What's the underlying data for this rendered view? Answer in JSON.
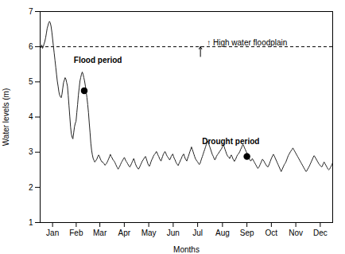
{
  "chart_data": {
    "type": "line",
    "xlabel": "Months",
    "ylabel": "Water levels (m)",
    "xlim": [
      0,
      365
    ],
    "xticks": [
      {
        "value": 15.5,
        "label": "Jan"
      },
      {
        "value": 45,
        "label": "Feb"
      },
      {
        "value": 74.5,
        "label": "Mar"
      },
      {
        "value": 105,
        "label": "Apr"
      },
      {
        "value": 135.5,
        "label": "May"
      },
      {
        "value": 166,
        "label": "Jun"
      },
      {
        "value": 196.5,
        "label": "Jul"
      },
      {
        "value": 227.5,
        "label": "Aug"
      },
      {
        "value": 258,
        "label": "Sep"
      },
      {
        "value": 288.5,
        "label": "Oct"
      },
      {
        "value": 319,
        "label": "Nov"
      },
      {
        "value": 349.5,
        "label": "Dec"
      }
    ],
    "ylim": [
      1,
      7
    ],
    "yticks": [
      1,
      2,
      3,
      4,
      5,
      6,
      7
    ],
    "grid": false,
    "background_color": "#ffffff",
    "series": [
      {
        "type": "line",
        "color": "#222222",
        "x": [
          0,
          0.9733,
          1.9467,
          2.92,
          3.8933,
          4.8667,
          5.84,
          6.8133,
          7.7867,
          8.76,
          9.7333,
          10.7067,
          11.68,
          12.6533,
          13.6267,
          14.6,
          15.5733,
          16.5467,
          17.52,
          18.4933,
          19.4667,
          20.44,
          21.4133,
          22.3867,
          23.36,
          24.3333,
          25.3067,
          26.28,
          27.2533,
          28.2267,
          29.2,
          30.1733,
          31.1467,
          32.12,
          33.0933,
          34.0667,
          35.04,
          36.0133,
          36.9867,
          37.96,
          38.9333,
          39.9067,
          40.88,
          41.8533,
          42.8267,
          43.8,
          44.7733,
          45.7467,
          46.72,
          47.6933,
          48.6667,
          49.64,
          50.6133,
          51.5867,
          52.56,
          53.5333,
          54.5067,
          55.48,
          56.4533,
          57.4267,
          58.4,
          59.3733,
          60.3467,
          61.32,
          62.2933,
          63.2667,
          64.24,
          65.2133,
          66.1867,
          67.16,
          68.1333,
          69.1067,
          70.08,
          71.0533,
          72.0267,
          73,
          73.9733,
          74.9467,
          75.92,
          76.8933,
          77.8667,
          78.84,
          79.8133,
          80.7867,
          81.76,
          82.7333,
          83.7067,
          84.68,
          85.6533,
          86.6267,
          87.6,
          88.5733,
          89.5467,
          90.52,
          91.4933,
          92.4667,
          93.44,
          94.4133,
          95.3867,
          96.36,
          97.3333,
          98.3067,
          99.28,
          100.2533,
          101.2267,
          102.2,
          103.1733,
          104.1467,
          105.12,
          106.0933,
          107.0667,
          108.04,
          109.0133,
          109.9867,
          110.96,
          111.9333,
          112.9067,
          113.88,
          114.8533,
          115.8267,
          116.8,
          117.7733,
          118.7467,
          119.72,
          120.6933,
          121.6667,
          122.64,
          123.6133,
          124.5867,
          125.56,
          126.5333,
          127.5067,
          128.48,
          129.4533,
          130.4267,
          131.4,
          132.3733,
          133.3467,
          134.32,
          135.2933,
          136.2667,
          137.24,
          138.2133,
          139.1867,
          140.16,
          141.1333,
          142.1067,
          143.08,
          144.0533,
          145.0267,
          146,
          146.9733,
          147.9467,
          148.92,
          149.8933,
          150.8667,
          151.84,
          152.8133,
          153.7867,
          154.76,
          155.7333,
          156.7067,
          157.68,
          158.6533,
          159.6267,
          160.6,
          161.5733,
          162.5467,
          163.52,
          164.4933,
          165.4667,
          166.44,
          167.4133,
          168.3867,
          169.36,
          170.3333,
          171.3067,
          172.28,
          173.2533,
          174.2267,
          175.2,
          176.1733,
          177.1467,
          178.12,
          179.0933,
          180.0667,
          181.04,
          182.0133,
          182.9867,
          183.96,
          184.9333,
          185.9067,
          186.88,
          187.8533,
          188.8267,
          189.8,
          190.7733,
          191.7467,
          192.72,
          193.6933,
          194.6667,
          195.64,
          196.6133,
          197.5867,
          198.56,
          199.5333,
          200.5067,
          201.48,
          202.4533,
          203.4267,
          204.4,
          205.3733,
          206.3467,
          207.32,
          208.2933,
          209.2667,
          210.24,
          211.2133,
          212.1867,
          213.16,
          214.1333,
          215.1067,
          216.08,
          217.0533,
          218.0267,
          219,
          219.9733,
          220.9467,
          221.92,
          222.8933,
          223.8667,
          224.84,
          225.8133,
          226.7867,
          227.76,
          228.7333,
          229.7067,
          230.68,
          231.6533,
          232.6267,
          233.6,
          234.5733,
          235.5467,
          236.52,
          237.4933,
          238.4667,
          239.44,
          240.4133,
          241.3867,
          242.36,
          243.3333,
          244.3067,
          245.28,
          246.2533,
          247.2267,
          248.2,
          249.1733,
          250.1467,
          251.12,
          252.0933,
          253.0667,
          254.04,
          255.0133,
          255.9867,
          256.96,
          257.9333,
          258.9067,
          259.88,
          260.8533,
          261.8267,
          262.8,
          263.7733,
          264.7467,
          265.72,
          266.6933,
          267.6667,
          268.64,
          269.6133,
          270.5867,
          271.56,
          272.5333,
          273.5067,
          274.48,
          275.4533,
          276.4267,
          277.4,
          278.3733,
          279.3467,
          280.32,
          281.2933,
          282.2667,
          283.24,
          284.2133,
          285.1867,
          286.16,
          287.1333,
          288.1067,
          289.08,
          290.0533,
          291.0267,
          292,
          292.9733,
          293.9467,
          294.92,
          295.8933,
          296.8667,
          297.84,
          298.8133,
          299.7867,
          300.76,
          301.7333,
          302.7067,
          303.68,
          304.6533,
          305.6267,
          306.6,
          307.5733,
          308.5467,
          309.52,
          310.4933,
          311.4667,
          312.44,
          313.4133,
          314.3867,
          315.36,
          316.3333,
          317.3067,
          318.28,
          319.2533,
          320.2267,
          321.2,
          322.1733,
          323.1467,
          324.12,
          325.0933,
          326.0667,
          327.04,
          328.0133,
          328.9867,
          329.96,
          330.9333,
          331.9067,
          332.88,
          333.8533,
          334.8267,
          335.8,
          336.7733,
          337.7467,
          338.72,
          339.6933,
          340.6667,
          341.64,
          342.6133,
          343.5867,
          344.56,
          345.5333,
          346.5067,
          347.48,
          348.4533,
          349.4267,
          350.4,
          351.3733,
          352.3467,
          353.32,
          354.2933,
          355.2667,
          356.24,
          357.2133,
          358.1867,
          359.16,
          360.1333,
          361.1067,
          362.08,
          363.0533,
          364.0267,
          365
        ],
        "values": [
          6.02,
          5.98,
          6.05,
          5.95,
          6.0,
          6.08,
          6.15,
          6.25,
          6.38,
          6.52,
          6.6,
          6.68,
          6.72,
          6.68,
          6.58,
          6.42,
          6.22,
          6.02,
          5.82,
          5.62,
          5.42,
          5.22,
          5.02,
          4.88,
          4.72,
          4.62,
          4.58,
          4.55,
          4.65,
          4.82,
          4.98,
          5.05,
          5.12,
          5.08,
          4.98,
          4.88,
          4.62,
          4.32,
          4.02,
          3.72,
          3.52,
          3.42,
          3.38,
          3.55,
          3.72,
          3.82,
          3.88,
          4.12,
          4.35,
          4.62,
          4.82,
          5.02,
          5.12,
          5.22,
          5.28,
          5.22,
          5.12,
          5.02,
          4.88,
          4.72,
          4.55,
          4.35,
          4.12,
          3.82,
          3.55,
          3.25,
          3.05,
          2.92,
          2.82,
          2.77,
          2.72,
          2.75,
          2.78,
          2.82,
          2.88,
          2.92,
          2.88,
          2.82,
          2.77,
          2.73,
          2.72,
          2.7,
          2.67,
          2.63,
          2.65,
          2.68,
          2.72,
          2.77,
          2.82,
          2.88,
          2.94,
          2.88,
          2.85,
          2.8,
          2.77,
          2.74,
          2.7,
          2.65,
          2.6,
          2.56,
          2.52,
          2.56,
          2.6,
          2.65,
          2.7,
          2.74,
          2.78,
          2.82,
          2.85,
          2.8,
          2.75,
          2.72,
          2.68,
          2.64,
          2.6,
          2.58,
          2.62,
          2.67,
          2.72,
          2.77,
          2.82,
          2.75,
          2.68,
          2.62,
          2.58,
          2.55,
          2.52,
          2.55,
          2.6,
          2.65,
          2.7,
          2.75,
          2.78,
          2.82,
          2.85,
          2.88,
          2.82,
          2.75,
          2.68,
          2.63,
          2.6,
          2.65,
          2.72,
          2.78,
          2.82,
          2.88,
          2.92,
          2.95,
          2.98,
          3.02,
          2.98,
          2.92,
          2.88,
          2.82,
          2.78,
          2.75,
          2.82,
          2.88,
          2.95,
          2.98,
          3.02,
          2.98,
          2.92,
          2.88,
          2.85,
          2.82,
          2.78,
          2.82,
          2.88,
          2.92,
          2.95,
          2.88,
          2.82,
          2.78,
          2.72,
          2.68,
          2.65,
          2.62,
          2.68,
          2.72,
          2.78,
          2.82,
          2.88,
          2.92,
          2.95,
          2.88,
          2.82,
          2.78,
          2.75,
          2.82,
          2.88,
          2.95,
          3.02,
          3.08,
          3.15,
          3.08,
          3.02,
          2.95,
          2.88,
          2.82,
          2.78,
          2.75,
          2.72,
          2.68,
          2.65,
          2.68,
          2.75,
          2.82,
          2.88,
          2.95,
          3.02,
          3.08,
          3.15,
          3.22,
          3.28,
          3.32,
          3.25,
          3.18,
          3.12,
          3.05,
          2.98,
          2.92,
          2.88,
          2.82,
          2.78,
          2.82,
          2.88,
          2.92,
          2.95,
          2.98,
          3.02,
          3.05,
          3.08,
          3.12,
          3.18,
          3.22,
          3.15,
          3.08,
          3.02,
          2.95,
          2.9,
          2.88,
          2.85,
          2.82,
          2.88,
          2.92,
          2.88,
          2.82,
          2.78,
          2.74,
          2.78,
          2.82,
          2.88,
          2.92,
          2.95,
          2.98,
          3.02,
          3.08,
          3.12,
          3.18,
          3.22,
          3.18,
          3.12,
          3.08,
          3.02,
          2.98,
          2.92,
          2.88,
          2.82,
          2.78,
          2.75,
          2.78,
          2.82,
          2.78,
          2.74,
          2.7,
          2.66,
          2.62,
          2.58,
          2.54,
          2.56,
          2.6,
          2.65,
          2.7,
          2.75,
          2.8,
          2.78,
          2.74,
          2.7,
          2.66,
          2.62,
          2.6,
          2.58,
          2.62,
          2.68,
          2.74,
          2.8,
          2.85,
          2.9,
          2.94,
          2.9,
          2.85,
          2.8,
          2.75,
          2.7,
          2.65,
          2.6,
          2.55,
          2.5,
          2.45,
          2.5,
          2.55,
          2.6,
          2.65,
          2.68,
          2.72,
          2.78,
          2.84,
          2.9,
          2.94,
          2.98,
          3.02,
          3.05,
          3.08,
          3.12,
          3.08,
          3.04,
          3.0,
          2.96,
          2.92,
          2.88,
          2.84,
          2.8,
          2.76,
          2.72,
          2.68,
          2.64,
          2.6,
          2.56,
          2.52,
          2.48,
          2.45,
          2.48,
          2.52,
          2.56,
          2.6,
          2.65,
          2.7,
          2.75,
          2.8,
          2.85,
          2.9,
          2.88,
          2.84,
          2.8,
          2.76,
          2.72,
          2.68,
          2.65,
          2.62,
          2.6,
          2.58,
          2.62,
          2.68,
          2.72,
          2.68,
          2.64,
          2.6,
          2.56,
          2.52,
          2.5,
          2.52,
          2.56,
          2.6,
          2.65,
          2.7
        ]
      },
      {
        "type": "scatter",
        "color": "black",
        "marker": "circle",
        "x": [
          55,
          258
        ],
        "values": [
          4.75,
          2.88
        ]
      }
    ],
    "hline": {
      "y": 6.0,
      "color": "black",
      "line_style": "dashed"
    },
    "annotations": [
      {
        "text": "↑ High water floodplain",
        "x": 208,
        "y": 6.12,
        "arrow": {
          "x": 200,
          "y": 5.72,
          "x2": 200,
          "y2": 6.0
        }
      },
      {
        "text": "Flood period",
        "x": 42,
        "y": 5.55
      },
      {
        "text": "Drought period",
        "x": 202,
        "y": 3.22
      }
    ]
  }
}
